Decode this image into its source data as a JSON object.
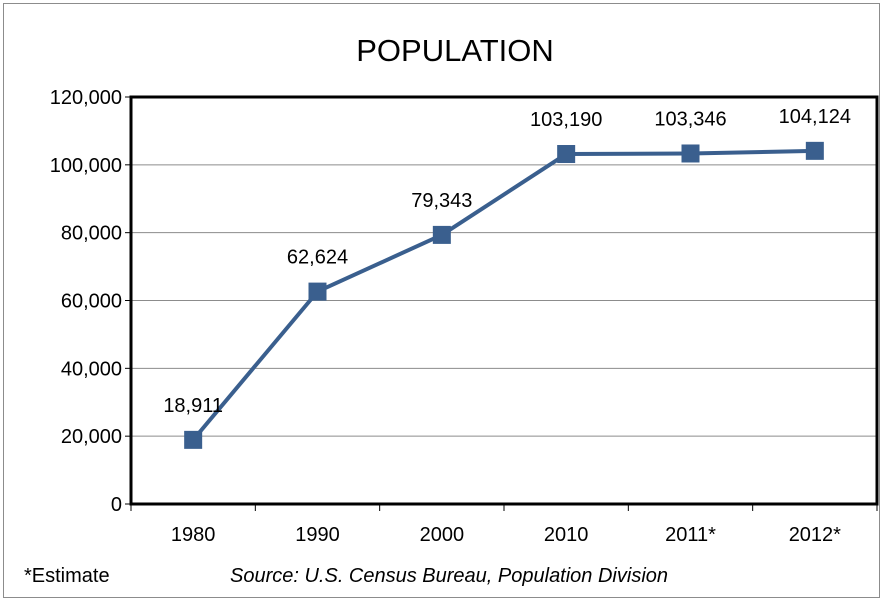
{
  "chart_data": {
    "type": "line",
    "title": "POPULATION",
    "categories": [
      "1980",
      "1990",
      "2000",
      "2010",
      "2011*",
      "2012*"
    ],
    "series": [
      {
        "values": [
          18911,
          62624,
          79343,
          103190,
          103346,
          104124
        ],
        "labels": [
          "18,911",
          "62,624",
          "79,343",
          "103,190",
          "103,346",
          "104,124"
        ],
        "color": "#3a5f8e",
        "marker": "square"
      }
    ],
    "ylim": [
      0,
      120000
    ],
    "yticks": [
      0,
      20000,
      40000,
      60000,
      80000,
      100000,
      120000
    ],
    "ytick_labels": [
      "0",
      "20,000",
      "40,000",
      "60,000",
      "80,000",
      "100,000",
      "120,000"
    ],
    "grid": true,
    "xlabel": "",
    "ylabel": ""
  },
  "footer": {
    "note": "*Estimate",
    "source": "Source: U.S. Census Bureau, Population Division"
  }
}
